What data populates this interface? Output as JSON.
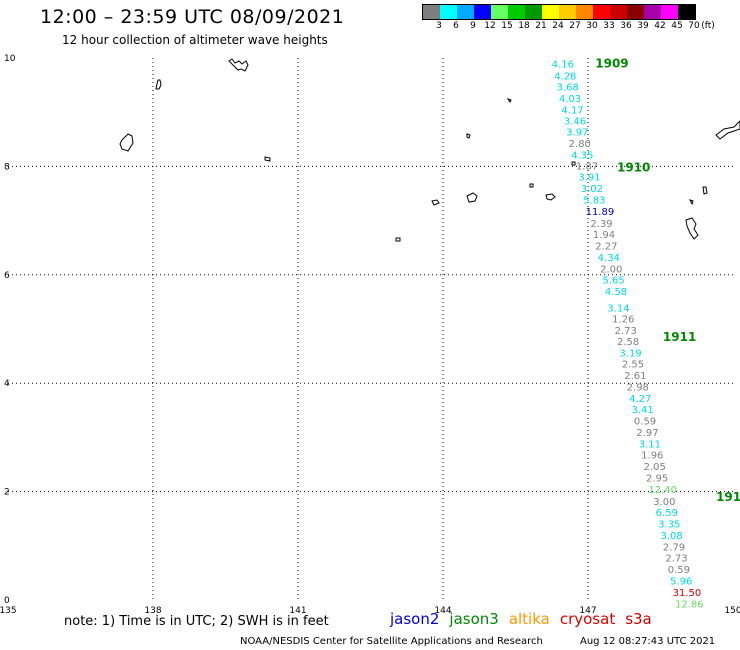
{
  "header": {
    "title": "12:00 – 23:59 UTC 08/09/2021",
    "subtitle": "12 hour collection of altimeter wave heights"
  },
  "color_scale": {
    "colors": [
      "#7f7f7f",
      "#00ffff",
      "#00aaff",
      "#0000ff",
      "#66ff66",
      "#00cc00",
      "#009900",
      "#ffff00",
      "#ffcc00",
      "#ff8800",
      "#ff0000",
      "#cc0000",
      "#880000",
      "#aa00aa",
      "#ff00ff",
      "#000000"
    ],
    "labels": [
      "3",
      "6",
      "9",
      "12",
      "15",
      "18",
      "21",
      "24",
      "27",
      "30",
      "33",
      "36",
      "39",
      "42",
      "45",
      "70",
      "(ft)"
    ]
  },
  "map": {
    "x_axis": {
      "range": [
        135,
        150
      ],
      "ticks": [
        "135",
        "138",
        "141",
        "144",
        "147",
        "150"
      ]
    },
    "y_axis": {
      "range": [
        0,
        10
      ],
      "ticks": [
        "0",
        "2",
        "4",
        "6",
        "8",
        "10"
      ]
    },
    "grid": "dotted",
    "time_labels": [
      {
        "text": "1909",
        "lon": 147.15,
        "lat": 9.9,
        "color": "#008800"
      },
      {
        "text": "1910",
        "lon": 147.6,
        "lat": 7.98,
        "color": "#008800"
      },
      {
        "text": "1911",
        "lon": 148.55,
        "lat": 4.85,
        "color": "#008800"
      },
      {
        "text": "191",
        "lon": 149.65,
        "lat": 1.9,
        "color": "#008800"
      }
    ],
    "track": [
      {
        "text": "4.16",
        "lon": 146.25,
        "lat": 9.9,
        "color": "#00d8e8"
      },
      {
        "text": "4.28",
        "lon": 146.3,
        "lat": 9.68,
        "color": "#00d8e8"
      },
      {
        "text": "3.68",
        "lon": 146.35,
        "lat": 9.47,
        "color": "#00d8e8"
      },
      {
        "text": "4.03",
        "lon": 146.4,
        "lat": 9.26,
        "color": "#00d8e8"
      },
      {
        "text": "4.17",
        "lon": 146.45,
        "lat": 9.05,
        "color": "#00d8e8"
      },
      {
        "text": "3.46",
        "lon": 146.5,
        "lat": 8.85,
        "color": "#00d8e8"
      },
      {
        "text": "3.97",
        "lon": 146.55,
        "lat": 8.64,
        "color": "#00d8e8"
      },
      {
        "text": "2.80",
        "lon": 146.6,
        "lat": 8.43,
        "color": "#7f7f7f"
      },
      {
        "text": "4.35",
        "lon": 146.65,
        "lat": 8.22,
        "color": "#00d8e8"
      },
      {
        "text": "1.87",
        "lon": 146.75,
        "lat": 8.02,
        "color": "#7f7f7f"
      },
      {
        "text": "3.91",
        "lon": 146.8,
        "lat": 7.81,
        "color": "#00d8e8"
      },
      {
        "text": "3.02",
        "lon": 146.85,
        "lat": 7.6,
        "color": "#00d8e8"
      },
      {
        "text": "5.83",
        "lon": 146.9,
        "lat": 7.39,
        "color": "#00d8e8"
      },
      {
        "text": "11.89",
        "lon": 146.95,
        "lat": 7.18,
        "color": "#0000aa"
      },
      {
        "text": "2.39",
        "lon": 147.05,
        "lat": 6.96,
        "color": "#7f7f7f"
      },
      {
        "text": "1.94",
        "lon": 147.1,
        "lat": 6.75,
        "color": "#7f7f7f"
      },
      {
        "text": "2.27",
        "lon": 147.15,
        "lat": 6.54,
        "color": "#7f7f7f"
      },
      {
        "text": "4.34",
        "lon": 147.2,
        "lat": 6.33,
        "color": "#00d8e8"
      },
      {
        "text": "2.00",
        "lon": 147.25,
        "lat": 6.12,
        "color": "#7f7f7f"
      },
      {
        "text": "5.65",
        "lon": 147.3,
        "lat": 5.91,
        "color": "#00d8e8"
      },
      {
        "text": "4.58",
        "lon": 147.35,
        "lat": 5.7,
        "color": "#00d8e8"
      },
      {
        "text": "3.14",
        "lon": 147.4,
        "lat": 5.4,
        "color": "#00d8e8"
      },
      {
        "text": "1.26",
        "lon": 147.5,
        "lat": 5.19,
        "color": "#7f7f7f"
      },
      {
        "text": "2.73",
        "lon": 147.55,
        "lat": 4.98,
        "color": "#7f7f7f"
      },
      {
        "text": "2.58",
        "lon": 147.6,
        "lat": 4.78,
        "color": "#7f7f7f"
      },
      {
        "text": "3.19",
        "lon": 147.65,
        "lat": 4.57,
        "color": "#00d8e8"
      },
      {
        "text": "2.55",
        "lon": 147.7,
        "lat": 4.36,
        "color": "#7f7f7f"
      },
      {
        "text": "2.61",
        "lon": 147.75,
        "lat": 4.15,
        "color": "#7f7f7f"
      },
      {
        "text": "2.98",
        "lon": 147.8,
        "lat": 3.94,
        "color": "#7f7f7f"
      },
      {
        "text": "4.27",
        "lon": 147.85,
        "lat": 3.73,
        "color": "#00d8e8"
      },
      {
        "text": "3.41",
        "lon": 147.9,
        "lat": 3.52,
        "color": "#00d8e8"
      },
      {
        "text": "0.59",
        "lon": 147.95,
        "lat": 3.31,
        "color": "#7f7f7f"
      },
      {
        "text": "2.97",
        "lon": 148.0,
        "lat": 3.1,
        "color": "#7f7f7f"
      },
      {
        "text": "3.11",
        "lon": 148.05,
        "lat": 2.89,
        "color": "#00d8e8"
      },
      {
        "text": "1.96",
        "lon": 148.1,
        "lat": 2.68,
        "color": "#7f7f7f"
      },
      {
        "text": "2.05",
        "lon": 148.15,
        "lat": 2.47,
        "color": "#7f7f7f"
      },
      {
        "text": "2.95",
        "lon": 148.2,
        "lat": 2.26,
        "color": "#7f7f7f"
      },
      {
        "text": "12.40",
        "lon": 148.25,
        "lat": 2.05,
        "color": "#66dd66"
      },
      {
        "text": "3.00",
        "lon": 148.35,
        "lat": 1.83,
        "color": "#7f7f7f"
      },
      {
        "text": "6.59",
        "lon": 148.4,
        "lat": 1.62,
        "color": "#00d8e8"
      },
      {
        "text": "3.35",
        "lon": 148.45,
        "lat": 1.41,
        "color": "#00d8e8"
      },
      {
        "text": "3.08",
        "lon": 148.5,
        "lat": 1.2,
        "color": "#00d8e8"
      },
      {
        "text": "2.79",
        "lon": 148.55,
        "lat": 0.99,
        "color": "#7f7f7f"
      },
      {
        "text": "2.73",
        "lon": 148.6,
        "lat": 0.78,
        "color": "#7f7f7f"
      },
      {
        "text": "0.59",
        "lon": 148.65,
        "lat": 0.57,
        "color": "#7f7f7f"
      },
      {
        "text": "5.96",
        "lon": 148.7,
        "lat": 0.36,
        "color": "#00d8e8"
      },
      {
        "text": "31.50",
        "lon": 148.75,
        "lat": 0.15,
        "color": "#dd0000"
      },
      {
        "text": "12.86",
        "lon": 148.8,
        "lat": -0.06,
        "color": "#66dd66"
      }
    ],
    "land_color": "#000000"
  },
  "footer": {
    "note": "note:  1) Time is in UTC;  2) SWH is in feet",
    "satellites": [
      {
        "name": "jason2",
        "color": "#0000dd"
      },
      {
        "name": "jason3",
        "color": "#008800"
      },
      {
        "name": "altika",
        "color": "#ff9900"
      },
      {
        "name": "cryosat",
        "color": "#dd0000"
      },
      {
        "name": "s3a",
        "color": "#cc0000"
      }
    ],
    "credit": "NOAA/NESDIS Center for Satellite Applications and Research",
    "timestamp": "Aug 12 08:27:43 UTC 2021"
  }
}
